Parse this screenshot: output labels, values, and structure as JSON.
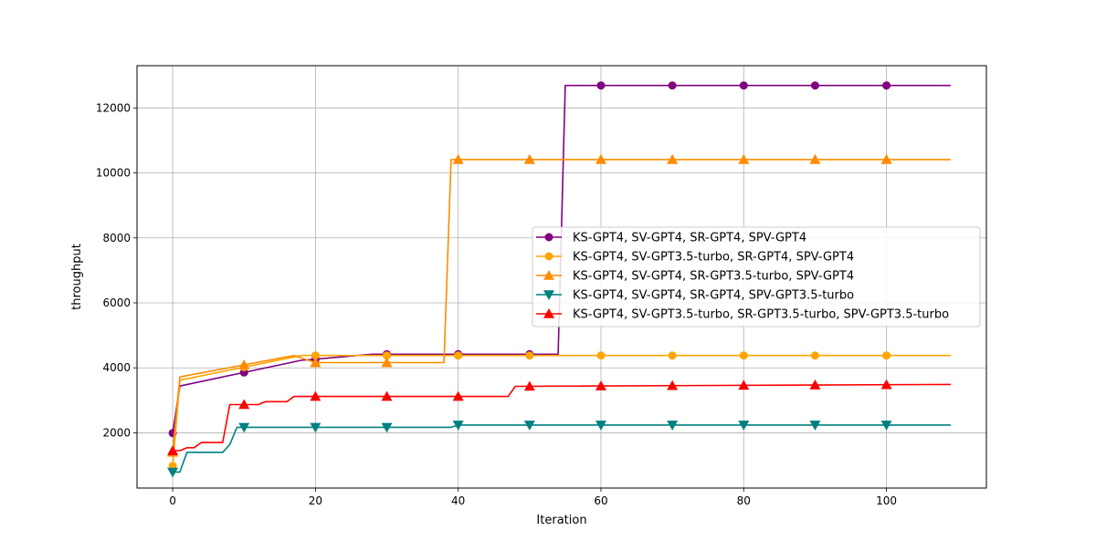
{
  "chart_data": {
    "type": "line",
    "xlabel": "Iteration",
    "ylabel": "throughput",
    "xlim": [
      -5,
      114
    ],
    "ylim": [
      300,
      13300
    ],
    "xticks": [
      0,
      20,
      40,
      60,
      80,
      100
    ],
    "yticks": [
      2000,
      4000,
      6000,
      8000,
      10000,
      12000
    ],
    "grid": true,
    "legend_position": "center-right",
    "series": [
      {
        "name": "KS-GPT4, SV-GPT4, SR-GPT4, SPV-GPT4",
        "color": "#800080",
        "marker": "circle",
        "steps": [
          [
            0,
            1990
          ],
          [
            1,
            3440
          ],
          [
            18,
            4230
          ],
          [
            28,
            4420
          ],
          [
            54,
            4420
          ],
          [
            55,
            12690
          ],
          [
            109,
            12690
          ]
        ]
      },
      {
        "name": "KS-GPT4, SV-GPT3.5-turbo, SR-GPT4, SPV-GPT4",
        "color": "#FFA500",
        "marker": "circle",
        "steps": [
          [
            0,
            980
          ],
          [
            1,
            3620
          ],
          [
            18,
            4380
          ],
          [
            109,
            4380
          ]
        ]
      },
      {
        "name": "KS-GPT4, SV-GPT4, SR-GPT3.5-turbo, SPV-GPT4",
        "color": "#FF8C00",
        "marker": "triangle-up",
        "steps": [
          [
            0,
            1400
          ],
          [
            1,
            3720
          ],
          [
            17,
            4380
          ],
          [
            20,
            4160
          ],
          [
            38,
            4160
          ],
          [
            39,
            10410
          ],
          [
            109,
            10410
          ]
        ]
      },
      {
        "name": "KS-GPT4, SV-GPT4, SR-GPT4, SPV-GPT3.5-turbo",
        "color": "#008080",
        "marker": "triangle-down",
        "steps": [
          [
            0,
            790
          ],
          [
            1,
            790
          ],
          [
            2,
            1400
          ],
          [
            7,
            1400
          ],
          [
            8,
            1640
          ],
          [
            9,
            2170
          ],
          [
            39,
            2170
          ],
          [
            40,
            2240
          ],
          [
            109,
            2240
          ]
        ]
      },
      {
        "name": "KS-GPT4, SV-GPT3.5-turbo, SR-GPT3.5-turbo, SPV-GPT3.5-turbo",
        "color": "#FF0000",
        "marker": "triangle-up",
        "steps": [
          [
            0,
            1450
          ],
          [
            1,
            1450
          ],
          [
            2,
            1540
          ],
          [
            3,
            1540
          ],
          [
            4,
            1700
          ],
          [
            7,
            1700
          ],
          [
            8,
            2870
          ],
          [
            12,
            2870
          ],
          [
            13,
            2960
          ],
          [
            16,
            2960
          ],
          [
            17,
            3120
          ],
          [
            47,
            3120
          ],
          [
            48,
            3430
          ],
          [
            109,
            3490
          ]
        ]
      }
    ]
  }
}
